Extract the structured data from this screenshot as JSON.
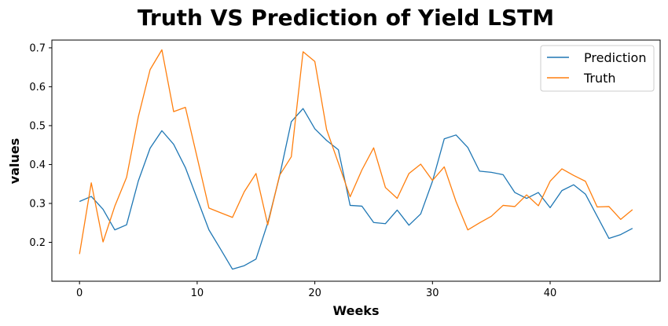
{
  "chart_data": {
    "type": "line",
    "title": "Truth VS Prediction of Yield LSTM",
    "xlabel": "Weeks",
    "ylabel": "values",
    "xlim": [
      -2.35,
      49.35
    ],
    "ylim": [
      0.1,
      0.72
    ],
    "xticks": [
      0,
      10,
      20,
      30,
      40
    ],
    "yticks": [
      0.2,
      0.3,
      0.4,
      0.5,
      0.6,
      0.7
    ],
    "ytick_labels": [
      "0.2",
      "0.3",
      "0.4",
      "0.5",
      "0.6",
      "0.7"
    ],
    "grid": false,
    "legend_position": "top-right",
    "x": [
      0,
      1,
      2,
      3,
      4,
      5,
      6,
      7,
      8,
      9,
      10,
      11,
      12,
      13,
      14,
      15,
      16,
      17,
      18,
      19,
      20,
      21,
      22,
      23,
      24,
      25,
      26,
      27,
      28,
      29,
      30,
      31,
      32,
      33,
      34,
      35,
      36,
      37,
      38,
      39,
      40,
      41,
      42,
      43,
      44,
      45,
      46,
      47
    ],
    "series": [
      {
        "name": "Prediction",
        "color": "#1f77b4",
        "values": [
          0.305,
          0.318,
          0.285,
          0.232,
          0.245,
          0.358,
          0.442,
          0.487,
          0.452,
          0.392,
          0.312,
          0.232,
          0.182,
          0.131,
          0.14,
          0.157,
          0.25,
          0.37,
          0.51,
          0.544,
          0.492,
          0.462,
          0.438,
          0.295,
          0.293,
          0.251,
          0.248,
          0.283,
          0.244,
          0.273,
          0.357,
          0.466,
          0.476,
          0.444,
          0.383,
          0.38,
          0.374,
          0.328,
          0.313,
          0.328,
          0.289,
          0.333,
          0.348,
          0.324,
          0.267,
          0.21,
          0.22,
          0.236
        ]
      },
      {
        "name": "Truth",
        "color": "#ff7f0e",
        "values": [
          0.17,
          0.353,
          0.201,
          0.293,
          0.367,
          0.523,
          0.644,
          0.695,
          0.536,
          0.547,
          0.418,
          0.288,
          0.276,
          0.264,
          0.33,
          0.377,
          0.245,
          0.372,
          0.42,
          0.69,
          0.665,
          0.49,
          0.404,
          0.317,
          0.386,
          0.443,
          0.341,
          0.313,
          0.377,
          0.401,
          0.359,
          0.394,
          0.305,
          0.232,
          0.25,
          0.267,
          0.295,
          0.292,
          0.322,
          0.294,
          0.357,
          0.389,
          0.372,
          0.357,
          0.291,
          0.292,
          0.259,
          0.284
        ]
      }
    ]
  }
}
